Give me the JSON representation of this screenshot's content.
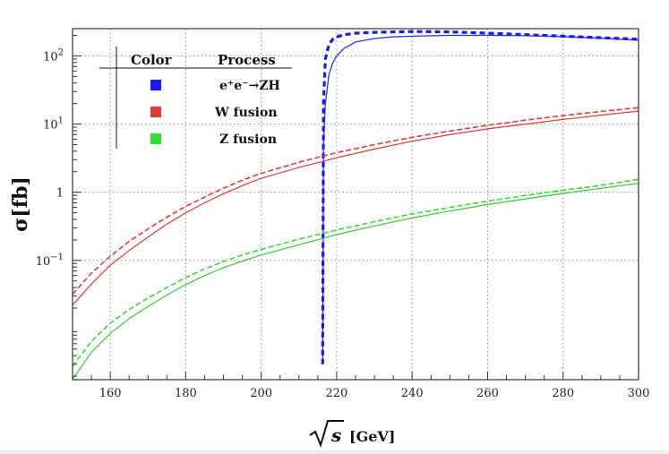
{
  "chart_data": {
    "type": "line",
    "title": "",
    "xlabel": "[GeV]",
    "xlabel_symbol": "s",
    "ylabel": "σ[fb]",
    "xlim": [
      150,
      300
    ],
    "ylim_log10": [
      -2.75,
      2.4
    ],
    "yscale": "log",
    "grid": true,
    "x_ticks": [
      160,
      180,
      200,
      220,
      240,
      260,
      280,
      300
    ],
    "x_tick_labels": [
      "160",
      "180",
      "200",
      "220",
      "240",
      "260",
      "280",
      "300"
    ],
    "y_ticks": [
      {
        "value": 0.1,
        "base": "10",
        "exp": "−1",
        "plain": ""
      },
      {
        "value": 1,
        "base": "",
        "exp": "",
        "plain": "1"
      },
      {
        "value": 10,
        "base": "10",
        "exp": "1",
        "plain": ""
      },
      {
        "value": 100,
        "base": "10",
        "exp": "2",
        "plain": ""
      }
    ],
    "legend": {
      "header_color": "Color",
      "header_process": "Process",
      "entries": [
        {
          "label": "e⁺e⁻→ZH",
          "color": "#1a1aff"
        },
        {
          "label": "W fusion",
          "color": "#e53935"
        },
        {
          "label": "Z fusion",
          "color": "#33dd33"
        }
      ]
    },
    "series": [
      {
        "name": "e⁺e⁻→ZH",
        "style": "solid",
        "color": "#2233ee",
        "x": [
          216.3,
          216.5,
          217,
          218,
          219,
          220,
          222,
          225,
          230,
          235,
          240,
          250,
          260,
          270,
          280,
          290,
          300
        ],
        "y": [
          0.003,
          5,
          20,
          55,
          80,
          100,
          130,
          160,
          180,
          190,
          195,
          200,
          200,
          198,
          192,
          182,
          170
        ]
      },
      {
        "name": "e⁺e⁻→ZH",
        "style": "dashed",
        "color": "#1a1aee",
        "x": [
          216.3,
          216.5,
          217,
          218,
          219,
          220,
          222,
          225,
          230,
          235,
          240,
          250,
          260,
          270,
          280,
          290,
          300
        ],
        "y": [
          0.003,
          20,
          90,
          150,
          175,
          190,
          205,
          215,
          222,
          225,
          228,
          225,
          215,
          205,
          195,
          185,
          175
        ]
      },
      {
        "name": "W fusion",
        "style": "solid",
        "color": "#e53935",
        "x": [
          150,
          155,
          160,
          165,
          170,
          175,
          180,
          185,
          190,
          195,
          200,
          210,
          220,
          230,
          240,
          250,
          260,
          270,
          280,
          290,
          300
        ],
        "y": [
          0.022,
          0.045,
          0.085,
          0.14,
          0.22,
          0.34,
          0.5,
          0.7,
          0.95,
          1.25,
          1.6,
          2.3,
          3.2,
          4.3,
          5.6,
          7.0,
          8.5,
          10.0,
          11.7,
          13.5,
          15.5
        ]
      },
      {
        "name": "W fusion",
        "style": "dashed",
        "color": "#e53935",
        "x": [
          150,
          155,
          160,
          165,
          170,
          175,
          180,
          185,
          190,
          195,
          200,
          210,
          220,
          230,
          240,
          250,
          260,
          270,
          280,
          290,
          300
        ],
        "y": [
          0.032,
          0.065,
          0.115,
          0.19,
          0.29,
          0.43,
          0.62,
          0.85,
          1.15,
          1.5,
          1.9,
          2.75,
          3.8,
          5.0,
          6.4,
          7.9,
          9.6,
          11.4,
          13.3,
          15.3,
          17.5
        ]
      },
      {
        "name": "Z fusion",
        "style": "solid",
        "color": "#33cc33",
        "x": [
          150,
          155,
          160,
          165,
          170,
          175,
          180,
          185,
          190,
          195,
          200,
          210,
          220,
          230,
          240,
          250,
          260,
          270,
          280,
          290,
          300
        ],
        "y": [
          0.0018,
          0.0045,
          0.0085,
          0.014,
          0.021,
          0.031,
          0.044,
          0.06,
          0.078,
          0.098,
          0.12,
          0.17,
          0.24,
          0.32,
          0.42,
          0.53,
          0.66,
          0.8,
          0.96,
          1.14,
          1.35
        ]
      },
      {
        "name": "Z fusion",
        "style": "dashed",
        "color": "#33dd33",
        "x": [
          150,
          155,
          160,
          165,
          170,
          175,
          180,
          185,
          190,
          195,
          200,
          210,
          220,
          230,
          240,
          250,
          260,
          270,
          280,
          290,
          300
        ],
        "y": [
          0.0028,
          0.0065,
          0.012,
          0.019,
          0.028,
          0.04,
          0.056,
          0.075,
          0.096,
          0.12,
          0.145,
          0.205,
          0.28,
          0.37,
          0.48,
          0.6,
          0.74,
          0.9,
          1.07,
          1.26,
          1.55
        ]
      }
    ]
  }
}
